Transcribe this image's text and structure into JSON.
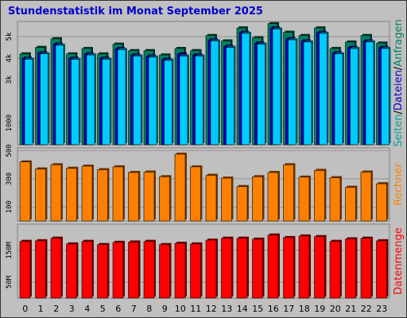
{
  "chart_data": {
    "type": "bar",
    "title": "Stundenstatistik im Monat September 2025",
    "categories": [
      "0",
      "1",
      "2",
      "3",
      "4",
      "5",
      "6",
      "7",
      "8",
      "9",
      "10",
      "11",
      "12",
      "13",
      "14",
      "15",
      "16",
      "17",
      "18",
      "19",
      "20",
      "21",
      "22",
      "23"
    ],
    "panels": [
      {
        "id": "top",
        "ylim": [
          0,
          5700
        ],
        "yticks": [
          {
            "value": 1000,
            "label": "1000"
          },
          {
            "value": 3000,
            "label": "3k"
          },
          {
            "value": 4000,
            "label": "4k"
          },
          {
            "value": 5000,
            "label": "5k"
          }
        ],
        "side_labels": [
          {
            "text": "Seiten",
            "color": "#00a0a0"
          },
          {
            "text": "/",
            "color": "#000000"
          },
          {
            "text": "Dateien",
            "color": "#0000cc"
          },
          {
            "text": "/",
            "color": "#000000"
          },
          {
            "text": "Anfragen",
            "color": "#008060"
          }
        ],
        "series": [
          {
            "name": "Anfragen",
            "color": "#008060",
            "values": [
              4200,
              4500,
              4900,
              4200,
              4450,
              4200,
              4650,
              4350,
              4350,
              4150,
              4450,
              4350,
              5050,
              4800,
              5400,
              4950,
              5600,
              5200,
              5050,
              5400,
              4450,
              4750,
              5050,
              4700
            ]
          },
          {
            "name": "Dateien",
            "color": "#0000cc",
            "values": [
              4000,
              4250,
              4650,
              4000,
              4200,
              4000,
              4450,
              4150,
              4100,
              3950,
              4200,
              4150,
              4850,
              4550,
              5200,
              4700,
              5400,
              4900,
              4800,
              5200,
              4250,
              4500,
              4800,
              4500
            ]
          },
          {
            "name": "Seiten",
            "color": "#00ccff",
            "values": [
              3950,
              4200,
              4600,
              3950,
              4150,
              3950,
              4400,
              4100,
              4050,
              3900,
              4100,
              4100,
              4800,
              4500,
              5150,
              4650,
              5350,
              4850,
              4750,
              5150,
              4200,
              4450,
              4750,
              4450
            ]
          }
        ]
      },
      {
        "id": "mid",
        "ylim": [
          0,
          520
        ],
        "yticks": [
          {
            "value": 100,
            "label": "100"
          },
          {
            "value": 300,
            "label": "300"
          },
          {
            "value": 500,
            "label": "500"
          }
        ],
        "side_labels": [
          {
            "text": "Rechner",
            "color": "#ff8000"
          }
        ],
        "series": [
          {
            "name": "Rechner",
            "color": "#ff8000",
            "values": [
              420,
              370,
              400,
              375,
              390,
              365,
              385,
              345,
              348,
              315,
              475,
              385,
              325,
              305,
              245,
              315,
              345,
              400,
              312,
              360,
              308,
              240,
              348,
              265
            ]
          }
        ]
      },
      {
        "id": "bot",
        "ylim": [
          0,
          232
        ],
        "yticks": [
          {
            "value": 50,
            "label": "50M"
          },
          {
            "value": 150,
            "label": "150M"
          }
        ],
        "side_labels": [
          {
            "text": "Datenmenge",
            "color": "#ff0000"
          }
        ],
        "series": [
          {
            "name": "Datenmenge",
            "color": "#ff0000",
            "values": [
              178,
              180,
              188,
              170,
              178,
              168,
              175,
              176,
              178,
              168,
              172,
              170,
              182,
              188,
              188,
              185,
              198,
              190,
              195,
              193,
              178,
              186,
              188,
              180
            ]
          }
        ]
      }
    ]
  }
}
